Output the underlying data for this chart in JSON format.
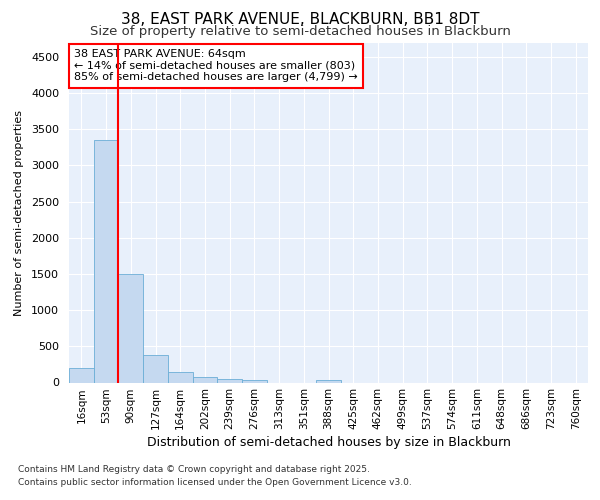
{
  "title1": "38, EAST PARK AVENUE, BLACKBURN, BB1 8DT",
  "title2": "Size of property relative to semi-detached houses in Blackburn",
  "xlabel": "Distribution of semi-detached houses by size in Blackburn",
  "ylabel": "Number of semi-detached properties",
  "categories": [
    "16sqm",
    "53sqm",
    "90sqm",
    "127sqm",
    "164sqm",
    "202sqm",
    "239sqm",
    "276sqm",
    "313sqm",
    "351sqm",
    "388sqm",
    "425sqm",
    "462sqm",
    "499sqm",
    "537sqm",
    "574sqm",
    "611sqm",
    "648sqm",
    "686sqm",
    "723sqm",
    "760sqm"
  ],
  "values": [
    200,
    3350,
    1500,
    380,
    150,
    80,
    50,
    30,
    0,
    0,
    30,
    0,
    0,
    0,
    0,
    0,
    0,
    0,
    0,
    0,
    0
  ],
  "bar_color": "#c5d9f0",
  "bar_edge_color": "#6baed6",
  "red_line_x": 1.5,
  "annotation_text": "38 EAST PARK AVENUE: 64sqm\n← 14% of semi-detached houses are smaller (803)\n85% of semi-detached houses are larger (4,799) →",
  "footer1": "Contains HM Land Registry data © Crown copyright and database right 2025.",
  "footer2": "Contains public sector information licensed under the Open Government Licence v3.0.",
  "ylim": [
    0,
    4700
  ],
  "yticks": [
    0,
    500,
    1000,
    1500,
    2000,
    2500,
    3000,
    3500,
    4000,
    4500
  ],
  "figure_bg": "#ffffff",
  "plot_bg": "#e8f0fb",
  "grid_color": "#ffffff",
  "line_color": "#ff0000",
  "title1_fontsize": 11,
  "title2_fontsize": 9.5
}
